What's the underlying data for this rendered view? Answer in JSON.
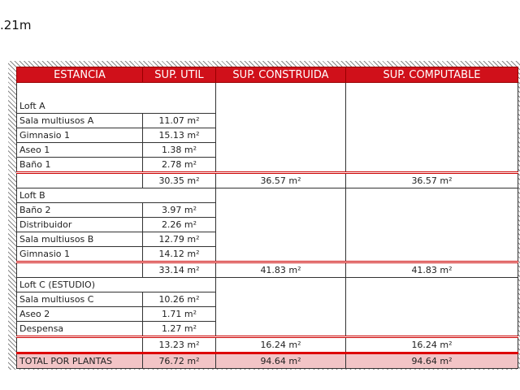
{
  "top_note": ".21m",
  "headers": [
    "ESTANCIA",
    "SUP. UTIL",
    "SUP. CONSTRUIDA",
    "SUP. COMPUTABLE"
  ],
  "unit": "m²",
  "groups": [
    {
      "name": "Loft A",
      "leading_blank": true,
      "rooms": [
        [
          "Sala multiusos A",
          "11.07 m²"
        ],
        [
          "Gimnasio 1",
          "15.13 m²"
        ],
        [
          "Aseo 1",
          "1.38 m²"
        ],
        [
          "Baño 1",
          "2.78 m²"
        ]
      ],
      "subtotal": {
        "util": "30.35 m²",
        "construida": "36.57 m²",
        "computable": "36.57 m²"
      }
    },
    {
      "name": "Loft B",
      "leading_blank": false,
      "rooms": [
        [
          "Baño 2",
          "3.97 m²"
        ],
        [
          "Distribuidor",
          "2.26 m²"
        ],
        [
          "Sala multiusos B",
          "12.79 m²"
        ],
        [
          "Gimnasio 1",
          "14.12 m²"
        ]
      ],
      "subtotal": {
        "util": "33.14 m²",
        "construida": "41.83 m²",
        "computable": "41.83 m²"
      }
    },
    {
      "name": "Loft C (ESTUDIO)",
      "leading_blank": false,
      "rooms": [
        [
          "Sala multiusos C",
          "10.26 m²"
        ],
        [
          "Aseo 2",
          "1.71 m²"
        ],
        [
          "Despensa",
          "1.27 m²"
        ]
      ],
      "subtotal": {
        "util": "13.23 m²",
        "construida": "16.24 m²",
        "computable": "16.24 m²"
      }
    }
  ],
  "total": {
    "label": "TOTAL POR PLANTAS",
    "util": "76.72 m²",
    "construida": "94.64 m²",
    "computable": "94.64 m²"
  },
  "colors": {
    "header_bg": "#d0101a",
    "total_bg": "#f2c4c6",
    "accent_line": "#cc0000"
  }
}
